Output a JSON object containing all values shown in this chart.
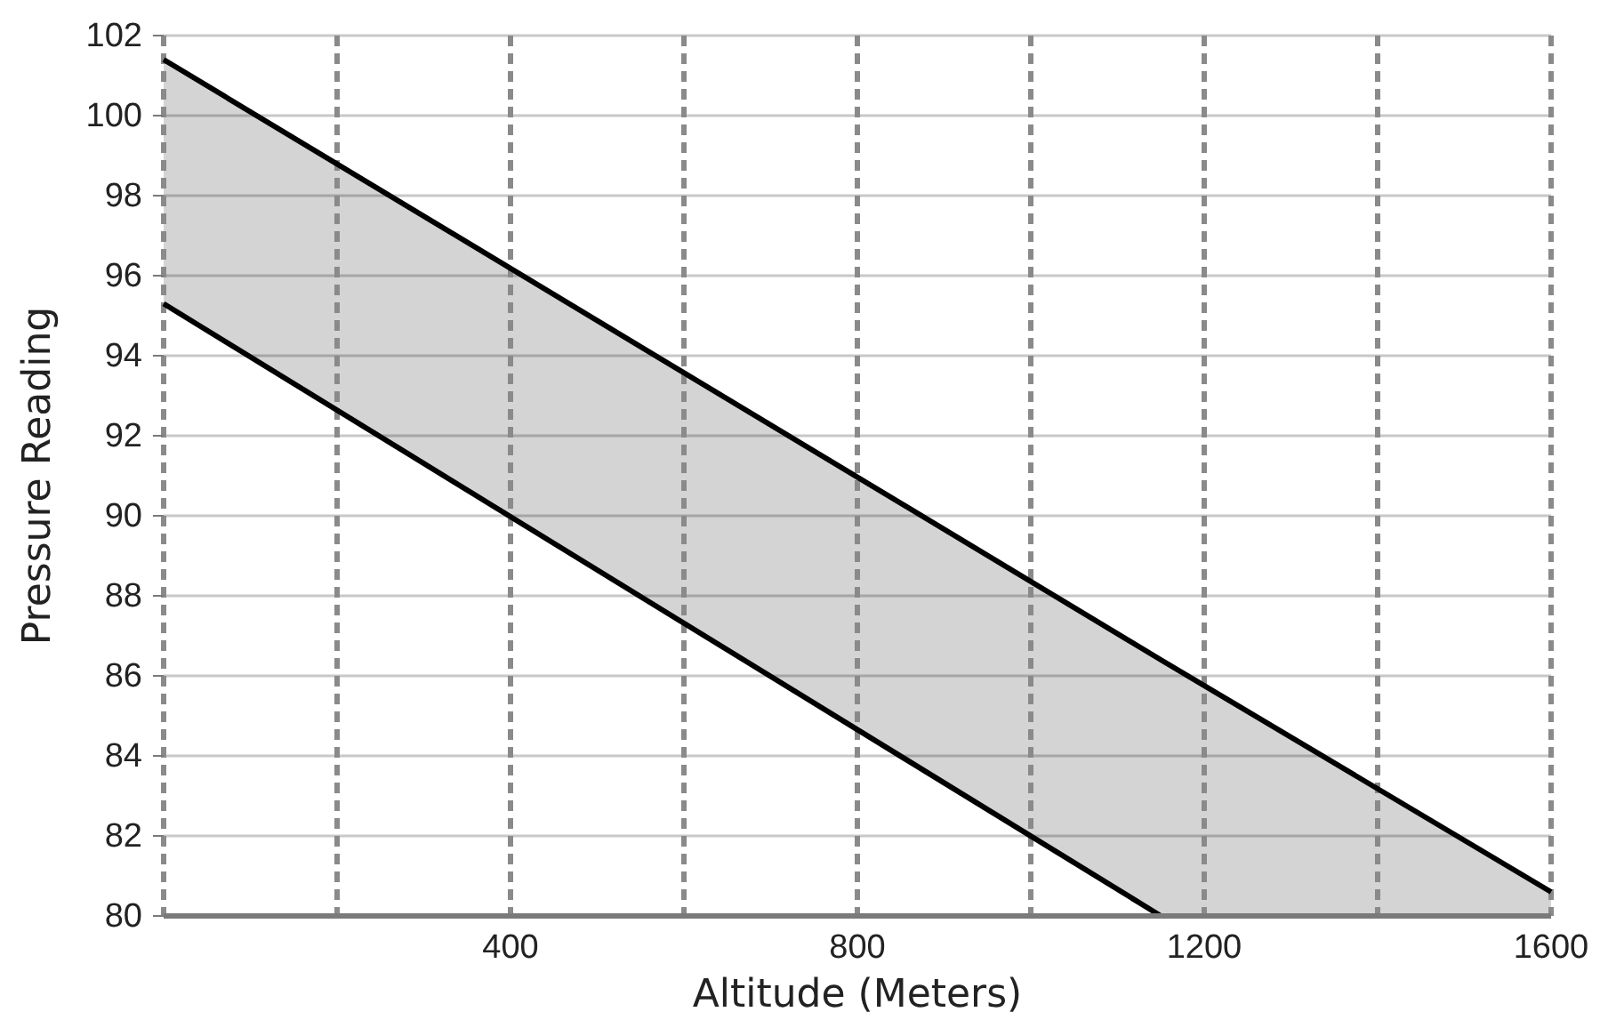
{
  "chart_data": {
    "type": "line",
    "xlabel": "Altitude (Meters)",
    "ylabel": "Pressure Reading",
    "xlim": [
      0,
      1600
    ],
    "xticks": [
      {
        "value": 0,
        "label": null
      },
      {
        "value": 200,
        "label": null
      },
      400,
      {
        "value": 600,
        "label": null
      },
      800,
      {
        "value": 1000,
        "label": null
      },
      1200,
      {
        "value": 1400,
        "label": null
      },
      1600
    ],
    "ylim": [
      80,
      102
    ],
    "yticks": [
      80,
      82,
      84,
      86,
      88,
      90,
      92,
      94,
      96,
      98,
      100,
      102
    ],
    "grid": true,
    "marker": "none",
    "line_style": "solid",
    "series": [
      {
        "color": "#000000",
        "x": [
          0,
          1150,
          1600
        ],
        "values": [
          101.4,
          86.4,
          80.6
        ],
        "lower": [
          95.3,
          80,
          80
        ],
        "upper": [
          101.4,
          86.4,
          80.6
        ]
      },
      {
        "color": "#000000",
        "x": [
          0,
          1150
        ],
        "values": [
          95.3,
          80
        ]
      }
    ]
  }
}
